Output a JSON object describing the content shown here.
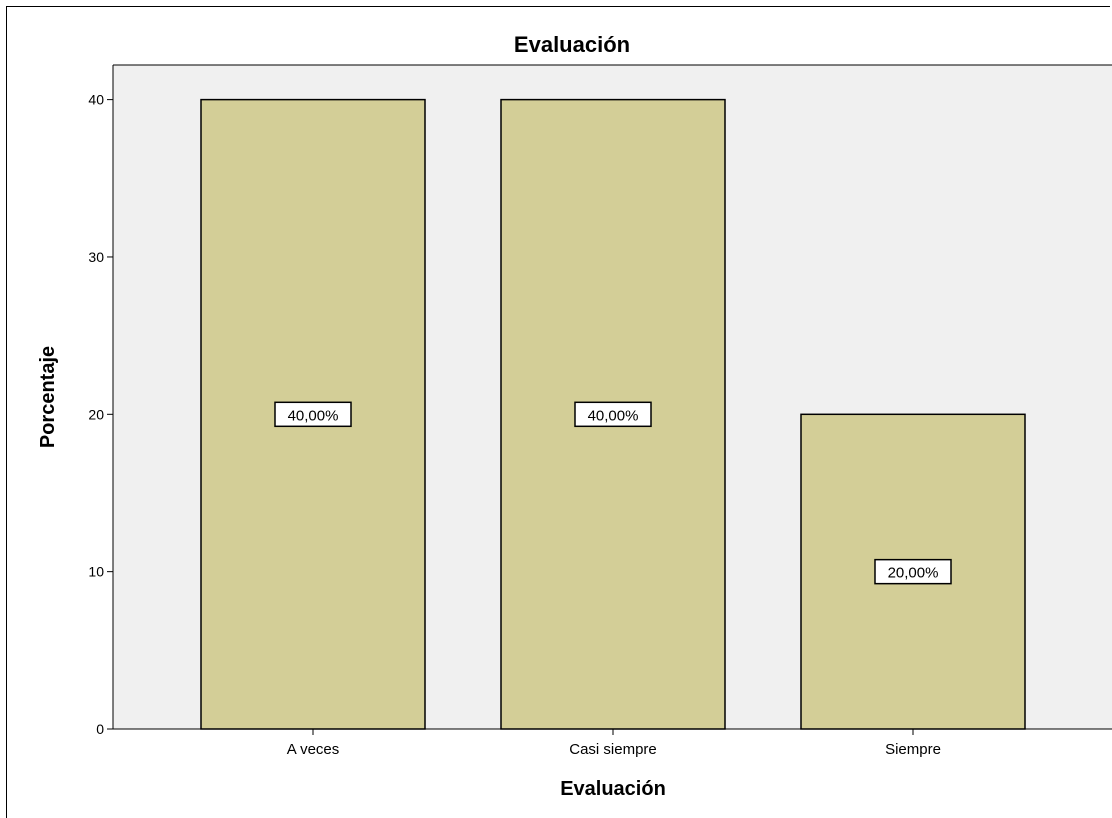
{
  "chart_data": {
    "type": "bar",
    "title": "Evaluación",
    "xlabel": "Evaluación",
    "ylabel": "Porcentaje",
    "categories": [
      "A veces",
      "Casi siempre",
      "Siempre"
    ],
    "values": [
      40,
      40,
      20
    ],
    "data_labels": [
      "40,00%",
      "40,00%",
      "20,00%"
    ],
    "ylim": [
      0,
      42.2
    ],
    "yticks": [
      0,
      10,
      20,
      30,
      40
    ],
    "grid": false,
    "colors": {
      "plot_background": "#f0f0f0",
      "bar_fill": "#d3ce97",
      "bar_stroke": "#000000"
    }
  }
}
